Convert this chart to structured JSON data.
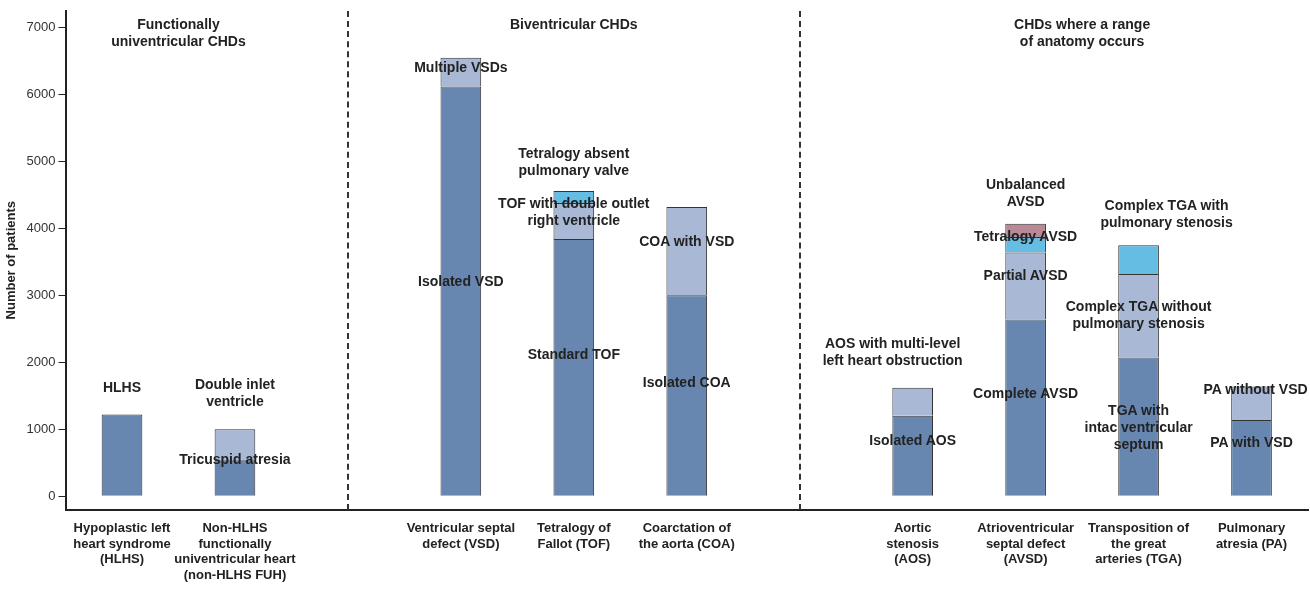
{
  "chart_data": {
    "type": "bar",
    "stacked": true,
    "ylabel": "Number of patients",
    "categories": [
      "Hypoplastic left\nheart syndrome\n(HLHS)",
      "Non-HLHS\nfunctionally\nuniventricular heart\n(non-HLHS FUH)",
      null,
      "Ventricular septal\ndefect (VSD)",
      "Tetralogy of\nFallot (TOF)",
      "Coarctation of\nthe aorta (COA)",
      null,
      "Aortic\nstenosis\n(AOS)",
      "Atrioventricular\nseptal defect\n(AVSD)",
      "Transposition of\nthe great\narteries (TGA)",
      "Pulmonary\natresia (PA)"
    ],
    "series": [
      {
        "color": "#6787b0",
        "values": [
          1220,
          550,
          null,
          6120,
          3840,
          3000,
          null,
          1200,
          2640,
          2070,
          1140
        ]
      },
      {
        "color": "#a9b8d5",
        "values": [
          null,
          450,
          null,
          430,
          540,
          1320,
          null,
          420,
          1000,
          1250,
          500
        ]
      },
      {
        "color": "#66bde3",
        "values": [
          null,
          null,
          null,
          null,
          180,
          null,
          null,
          null,
          230,
          430,
          null
        ]
      },
      {
        "color": "#b98a96",
        "values": [
          null,
          null,
          null,
          null,
          null,
          null,
          null,
          null,
          200,
          null,
          null
        ]
      }
    ],
    "ylim": [
      -200,
      7250
    ],
    "yticks": [
      0,
      1000,
      2000,
      3000,
      4000,
      5000,
      6000,
      7000
    ],
    "legend": false,
    "annotations": [
      "Functionally\nuniventricular CHDs",
      "Biventricular CHDs",
      "CHDs where a range\nof anatomy occurs",
      "HLHS",
      "Double inlet\nventricle",
      "Tricuspid atresia",
      "Multiple VSDs",
      "Isolated VSD",
      "Tetralogy absent\npulmonary valve",
      "TOF with double outlet\nright ventricle",
      "Standard TOF",
      "COA with VSD",
      "Isolated COA",
      "AOS with multi-level\nleft heart obstruction",
      "Isolated AOS",
      "Unbalanced\nAVSD",
      "Tetralogy AVSD",
      "Partial AVSD",
      "Complete AVSD",
      "Complex TGA with\npulmonary stenosis",
      "Complex TGA without\npulmonary stenosis",
      "TGA with\nintac ventricular\nseptum",
      "PA without VSD",
      "PA with VSD"
    ]
  }
}
